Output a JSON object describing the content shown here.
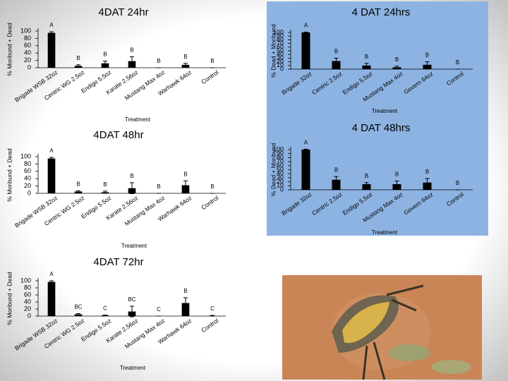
{
  "chart_data": [
    {
      "type": "bar",
      "title": "4DAT 24hr",
      "y_label": "% Moribund + Dead",
      "x_label": "Treatment",
      "categories": [
        "Brigade WSB 32oz",
        "Centric WG 2.5oz",
        "Endigo 5.5oz",
        "Karate 2.56oz",
        "Mustang Max 4oz",
        "Warhawk 64oz",
        "Control"
      ],
      "values": [
        95,
        5,
        12,
        18,
        0,
        8,
        0
      ],
      "errors": [
        3,
        3,
        6,
        12,
        0,
        4,
        0
      ],
      "letters": [
        "A",
        "B",
        "B",
        "B",
        "B",
        "B",
        "B"
      ],
      "color": "#000000",
      "ylim": [
        0,
        100
      ],
      "yticks": [
        0,
        20,
        40,
        60,
        80,
        100
      ]
    },
    {
      "type": "bar",
      "title": "4 DAT 24hrs",
      "y_label": "% Dead + Moribund",
      "x_label": "Treatment",
      "categories": [
        "Brigade 32oz",
        "Centric 2.5oz",
        "Endigo 5.5oz",
        "Mustang Max 4oz",
        "Govern 64oz",
        "Control"
      ],
      "values": [
        100,
        22,
        10,
        5,
        12,
        0
      ],
      "errors": [
        1,
        8,
        6,
        3,
        8,
        0
      ],
      "letters": [
        "A",
        "B",
        "B",
        "B",
        "B",
        "B"
      ],
      "color": "#000000",
      "ylim": [
        0,
        100
      ],
      "yticks": [
        0,
        10,
        20,
        30,
        40,
        50,
        60,
        70,
        80,
        90,
        100
      ]
    },
    {
      "type": "bar",
      "title": "4DAT 48hr",
      "y_label": "% Moribund + Dead",
      "x_label": "Treatment",
      "categories": [
        "Brigade WSB 32oz",
        "Centric WG 2.5oz",
        "Endigo 5.5oz",
        "Karate 2.56oz",
        "Mustang Max 4oz",
        "Warhawk 64oz",
        "Control"
      ],
      "values": [
        95,
        5,
        3,
        14,
        0,
        22,
        0
      ],
      "errors": [
        3,
        2,
        3,
        15,
        0,
        12,
        0
      ],
      "letters": [
        "A",
        "B",
        "B",
        "B",
        "B",
        "B",
        "B"
      ],
      "color": "#000000",
      "ylim": [
        0,
        100
      ],
      "yticks": [
        0,
        20,
        40,
        60,
        80,
        100
      ]
    },
    {
      "type": "bar",
      "title": "4 DAT 48hrs",
      "y_label": "% Dead + Moribund",
      "x_label": "Treatment",
      "categories": [
        "Brigade 32oz",
        "Centric 2.5oz",
        "Endigo 5.5oz",
        "Mustang Max 4oz",
        "Govern 64oz",
        "Control"
      ],
      "values": [
        100,
        25,
        14,
        14,
        18,
        0
      ],
      "errors": [
        1,
        8,
        4,
        8,
        10,
        0
      ],
      "letters": [
        "A",
        "B",
        "B",
        "B",
        "B",
        "B"
      ],
      "color": "#000000",
      "ylim": [
        0,
        100
      ],
      "yticks": [
        0,
        10,
        20,
        30,
        40,
        50,
        60,
        70,
        80,
        90,
        100
      ]
    },
    {
      "type": "bar",
      "title": "4DAT 72hr",
      "y_label": "% Moribund + Dead",
      "x_label": "Treatment",
      "categories": [
        "Brigade WSB 32oz",
        "Centric WG 2.5oz",
        "Endigo 5.5oz",
        "Karate 2.56oz",
        "Mustang Max 4oz",
        "Warhawk 64oz",
        "Control"
      ],
      "values": [
        97,
        5,
        2,
        13,
        0,
        37,
        1
      ],
      "errors": [
        3,
        2,
        1,
        15,
        0,
        15,
        1
      ],
      "letters": [
        "A",
        "BC",
        "C",
        "BC",
        "C",
        "B",
        "C"
      ],
      "color": "#000000",
      "ylim": [
        0,
        100
      ],
      "yticks": [
        0,
        20,
        40,
        60,
        80,
        100
      ]
    }
  ]
}
